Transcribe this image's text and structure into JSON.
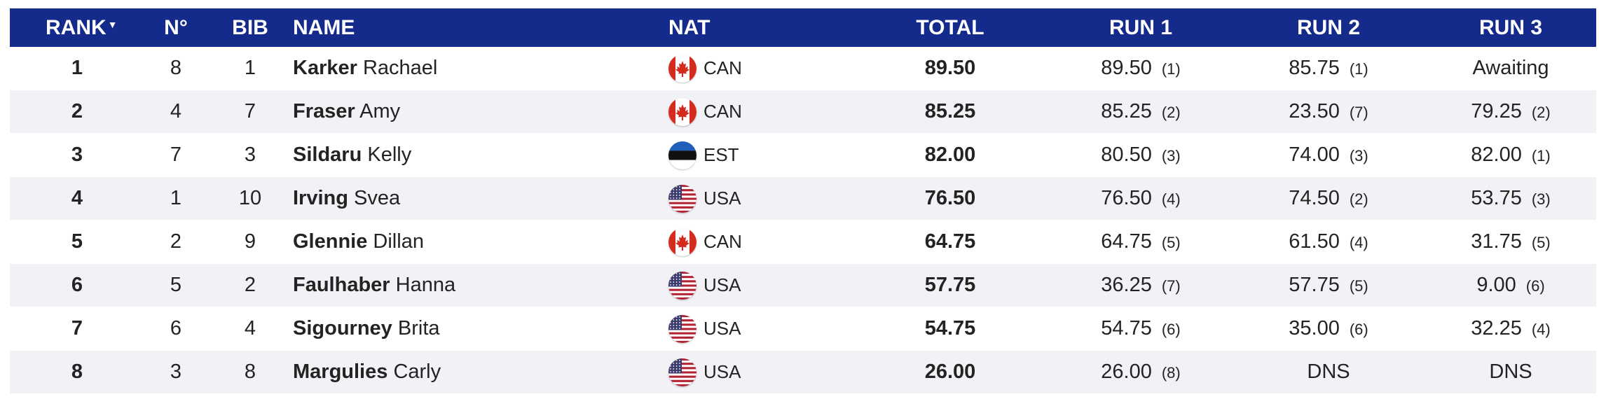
{
  "header": {
    "rank": "RANK",
    "sort_indicator": "▼",
    "no": "N°",
    "bib": "BIB",
    "name": "NAME",
    "nat": "NAT",
    "total": "TOTAL",
    "run1": "RUN 1",
    "run2": "RUN 2",
    "run3": "RUN 3"
  },
  "colors": {
    "header_bg": "#142b8c",
    "row_alt_bg": "#f2f2f6"
  },
  "rows": [
    {
      "rank": "1",
      "no": "8",
      "bib": "1",
      "surname": "Karker",
      "given": "Rachael",
      "nat": "CAN",
      "flag": "canada-flag-icon",
      "total": "89.50",
      "run1": {
        "score": "89.50",
        "rank": "(1)"
      },
      "run2": {
        "score": "85.75",
        "rank": "(1)"
      },
      "run3": {
        "score": "",
        "rank": "",
        "text": "Awaiting"
      }
    },
    {
      "rank": "2",
      "no": "4",
      "bib": "7",
      "surname": "Fraser",
      "given": "Amy",
      "nat": "CAN",
      "flag": "canada-flag-icon",
      "total": "85.25",
      "run1": {
        "score": "85.25",
        "rank": "(2)"
      },
      "run2": {
        "score": "23.50",
        "rank": "(7)"
      },
      "run3": {
        "score": "79.25",
        "rank": "(2)",
        "text": ""
      }
    },
    {
      "rank": "3",
      "no": "7",
      "bib": "3",
      "surname": "Sildaru",
      "given": "Kelly",
      "nat": "EST",
      "flag": "estonia-flag-icon",
      "total": "82.00",
      "run1": {
        "score": "80.50",
        "rank": "(3)"
      },
      "run2": {
        "score": "74.00",
        "rank": "(3)"
      },
      "run3": {
        "score": "82.00",
        "rank": "(1)",
        "text": ""
      }
    },
    {
      "rank": "4",
      "no": "1",
      "bib": "10",
      "surname": "Irving",
      "given": "Svea",
      "nat": "USA",
      "flag": "usa-flag-icon",
      "total": "76.50",
      "run1": {
        "score": "76.50",
        "rank": "(4)"
      },
      "run2": {
        "score": "74.50",
        "rank": "(2)"
      },
      "run3": {
        "score": "53.75",
        "rank": "(3)",
        "text": ""
      }
    },
    {
      "rank": "5",
      "no": "2",
      "bib": "9",
      "surname": "Glennie",
      "given": "Dillan",
      "nat": "CAN",
      "flag": "canada-flag-icon",
      "total": "64.75",
      "run1": {
        "score": "64.75",
        "rank": "(5)"
      },
      "run2": {
        "score": "61.50",
        "rank": "(4)"
      },
      "run3": {
        "score": "31.75",
        "rank": "(5)",
        "text": ""
      }
    },
    {
      "rank": "6",
      "no": "5",
      "bib": "2",
      "surname": "Faulhaber",
      "given": "Hanna",
      "nat": "USA",
      "flag": "usa-flag-icon",
      "total": "57.75",
      "run1": {
        "score": "36.25",
        "rank": "(7)"
      },
      "run2": {
        "score": "57.75",
        "rank": "(5)"
      },
      "run3": {
        "score": "9.00",
        "rank": "(6)",
        "text": ""
      }
    },
    {
      "rank": "7",
      "no": "6",
      "bib": "4",
      "surname": "Sigourney",
      "given": "Brita",
      "nat": "USA",
      "flag": "usa-flag-icon",
      "total": "54.75",
      "run1": {
        "score": "54.75",
        "rank": "(6)"
      },
      "run2": {
        "score": "35.00",
        "rank": "(6)"
      },
      "run3": {
        "score": "32.25",
        "rank": "(4)",
        "text": ""
      }
    },
    {
      "rank": "8",
      "no": "3",
      "bib": "8",
      "surname": "Margulies",
      "given": "Carly",
      "nat": "USA",
      "flag": "usa-flag-icon",
      "total": "26.00",
      "run1": {
        "score": "26.00",
        "rank": "(8)"
      },
      "run2": {
        "score": "",
        "rank": "",
        "text": "DNS"
      },
      "run3": {
        "score": "",
        "rank": "",
        "text": "DNS"
      }
    }
  ]
}
